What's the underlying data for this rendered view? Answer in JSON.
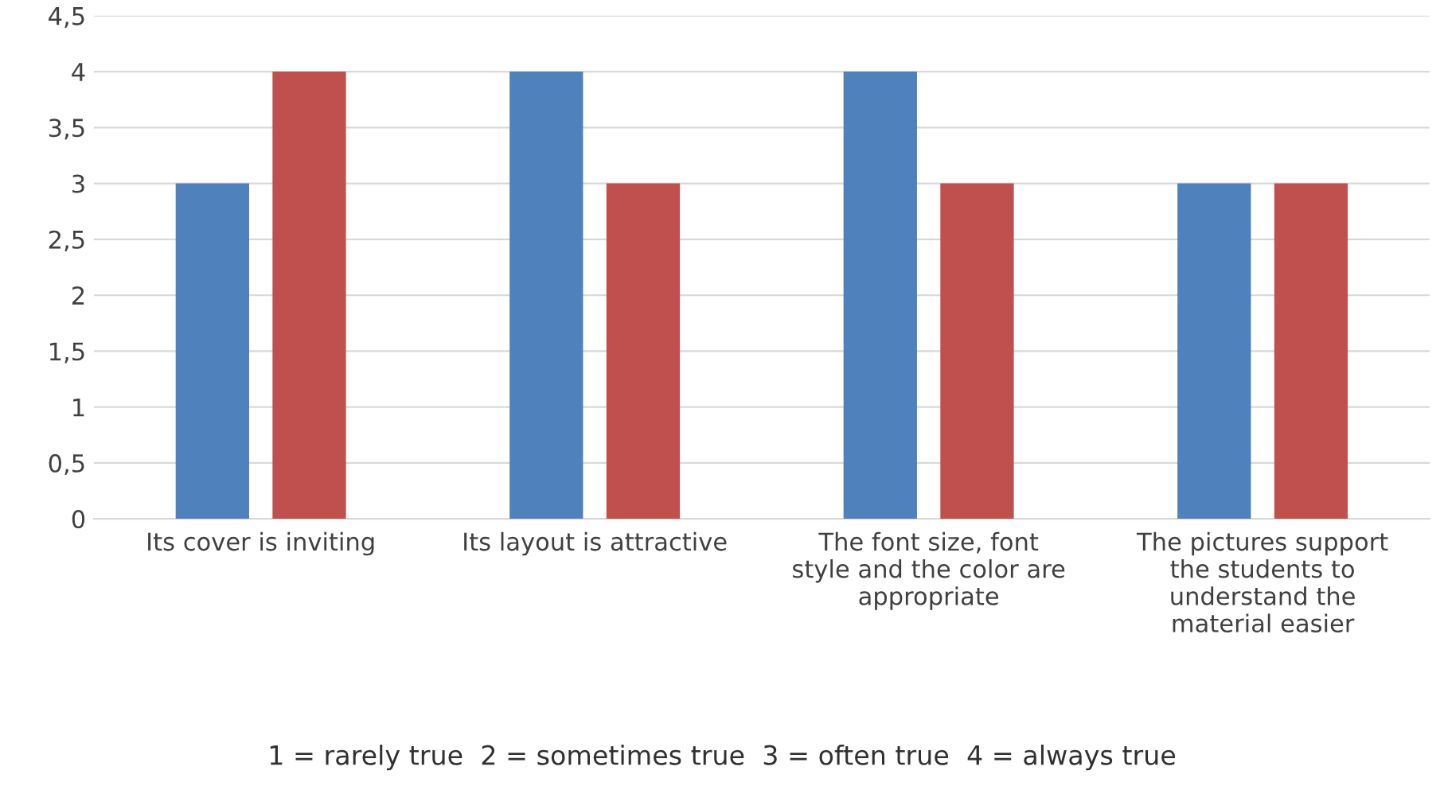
{
  "chart_data": {
    "type": "bar",
    "categories": [
      "Its cover is inviting",
      "Its layout is attractive",
      "The font size, font\nstyle and the color are\nappropriate",
      "The pictures support\nthe students to\nunderstand the\nmaterial easier"
    ],
    "series": [
      {
        "color": "#4f81bd",
        "values": [
          3,
          4,
          4,
          3
        ]
      },
      {
        "color": "#c0504d",
        "values": [
          4,
          3,
          3,
          3
        ]
      }
    ],
    "ylim": [
      0,
      4.5
    ],
    "yticks": [
      0,
      {
        "value": 0.5,
        "label": "0,5"
      },
      1,
      {
        "value": 1.5,
        "label": "1,5"
      },
      2,
      {
        "value": 2.5,
        "label": "2,5"
      },
      3,
      {
        "value": 3.5,
        "label": "3,5"
      },
      4,
      {
        "value": 4.5,
        "label": "4,5"
      }
    ],
    "grid": "y",
    "legend": false,
    "annotations": [
      "1 = rarely true  2 = sometimes true  3 = often true  4 = always true"
    ]
  }
}
